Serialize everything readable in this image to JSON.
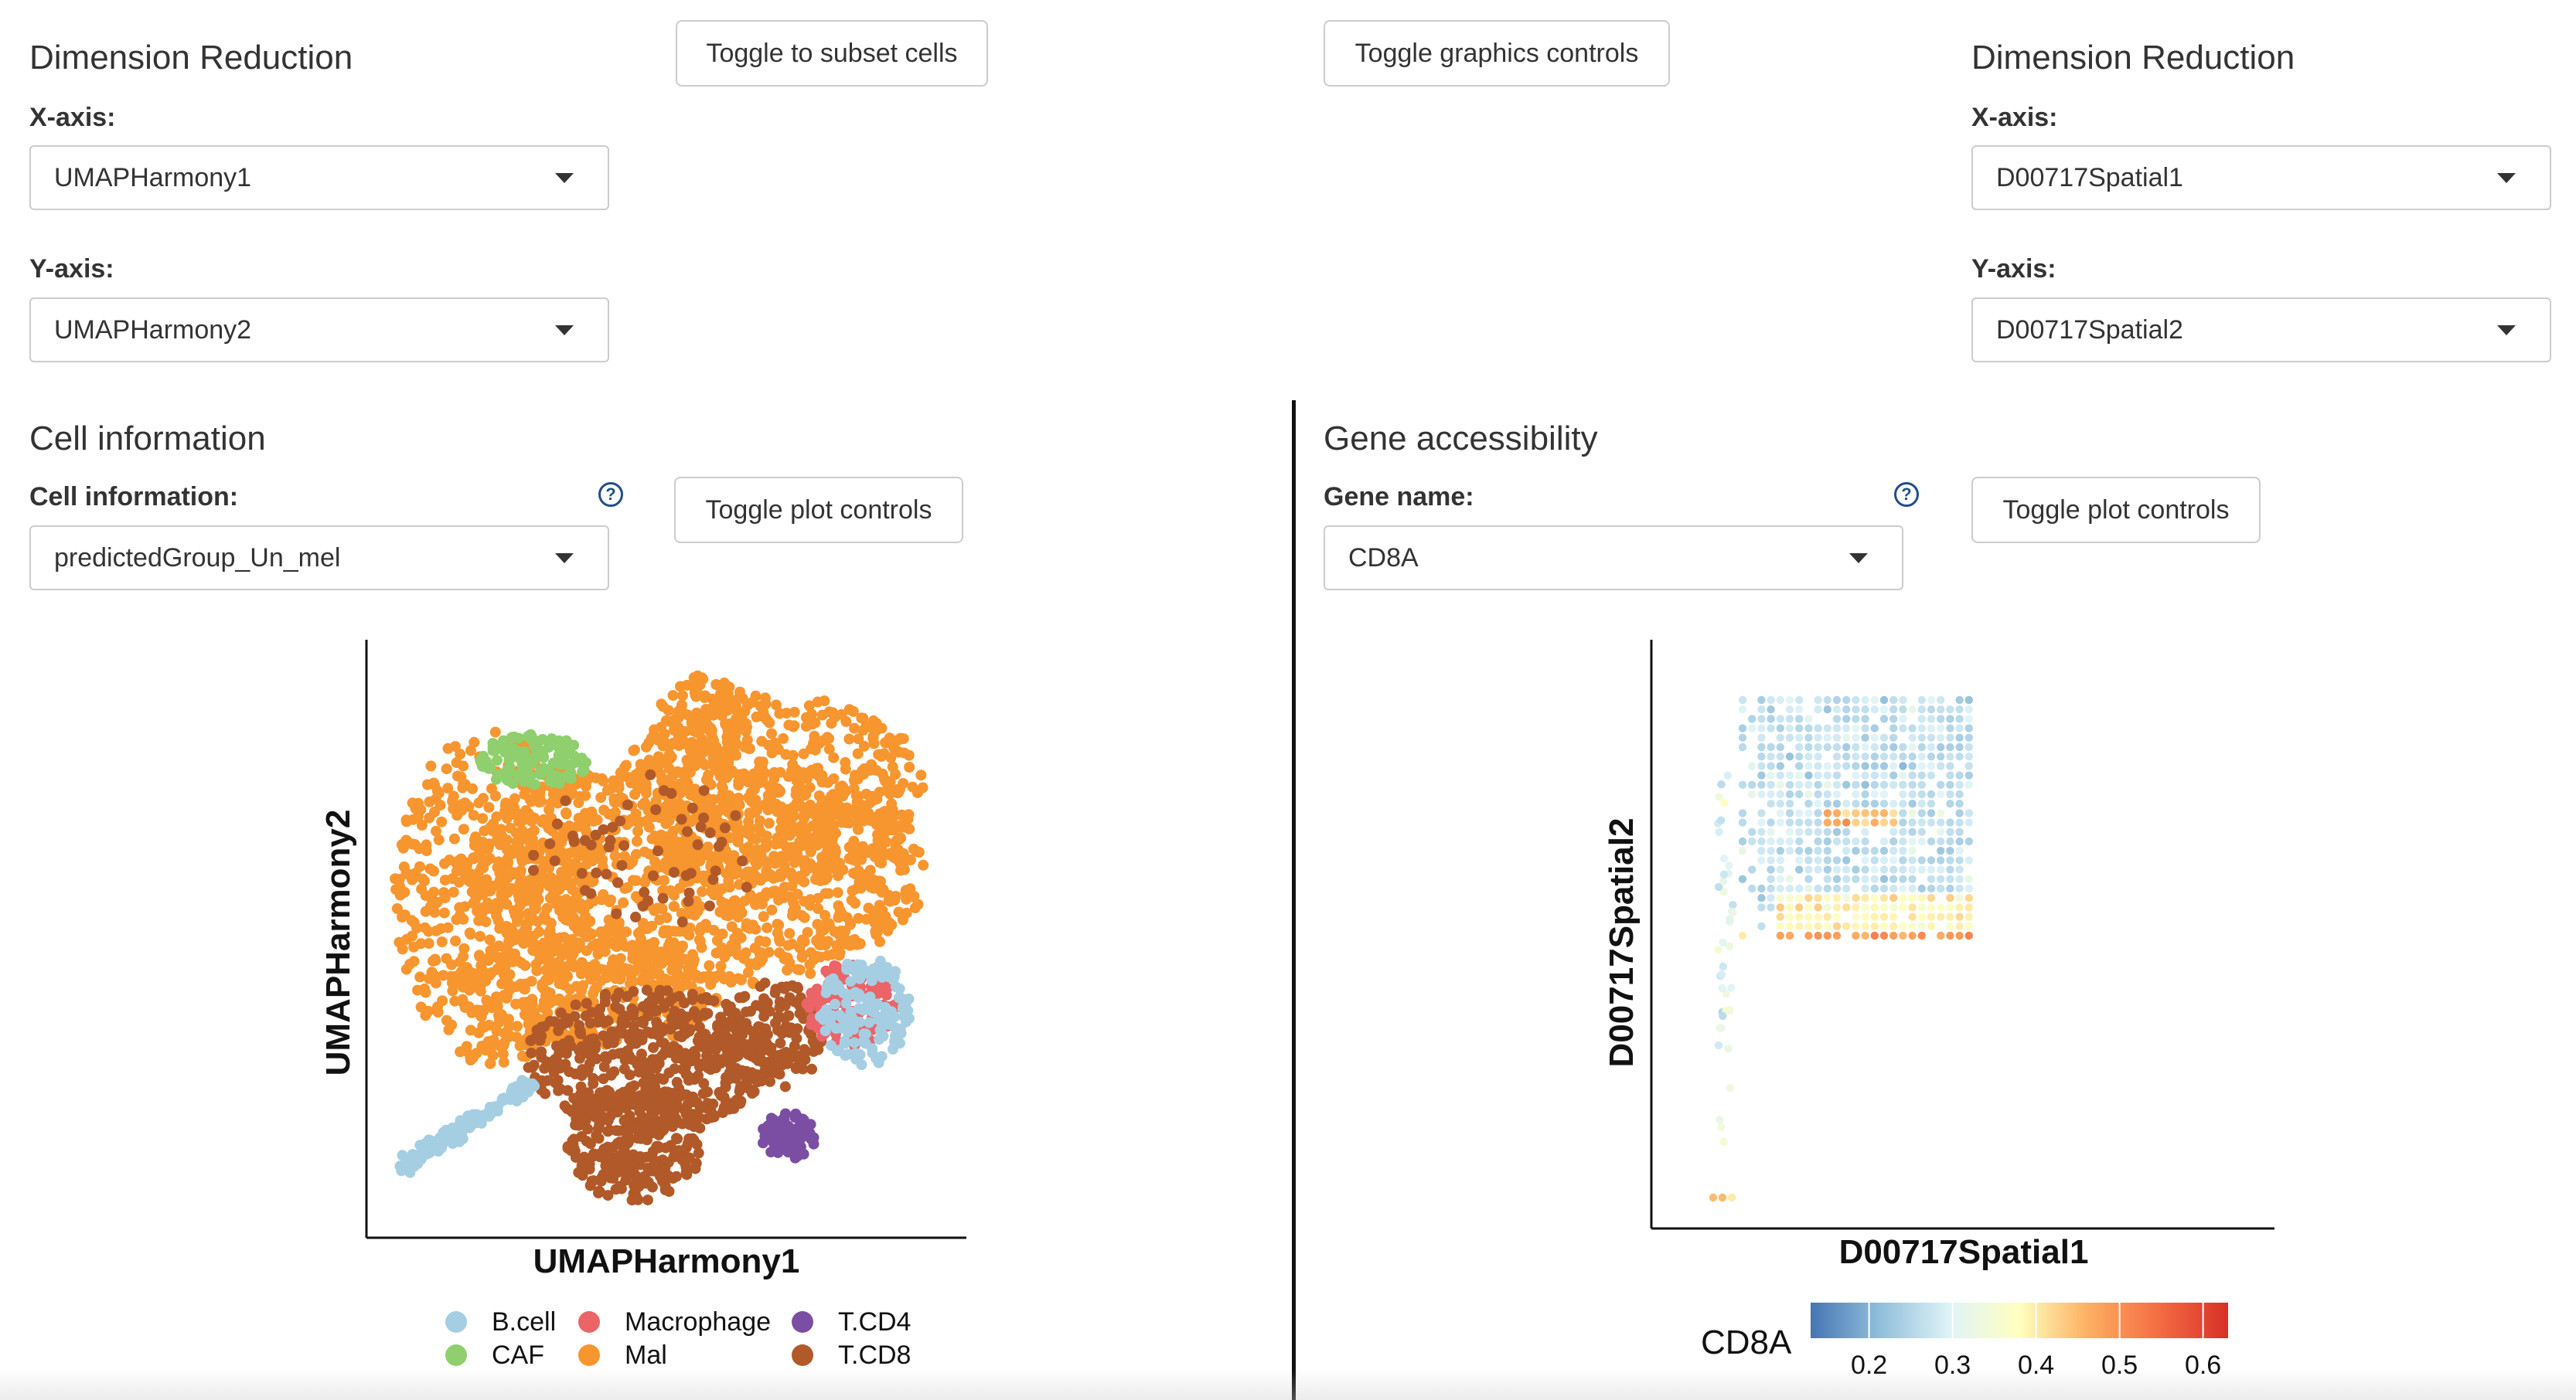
{
  "left_controls": {
    "dimred_title": "Dimension Reduction",
    "toggle_subset_label": "Toggle to subset cells",
    "x_axis_label": "X-axis:",
    "x_axis_value": "UMAPHarmony1",
    "y_axis_label": "Y-axis:",
    "y_axis_value": "UMAPHarmony2"
  },
  "right_controls": {
    "toggle_graphics_label": "Toggle graphics controls",
    "dimred_title": "Dimension Reduction",
    "x_axis_label": "X-axis:",
    "x_axis_value": "D00717Spatial1",
    "y_axis_label": "Y-axis:",
    "y_axis_value": "D00717Spatial2"
  },
  "cell_panel": {
    "title": "Cell information",
    "field_label": "Cell information:",
    "help_icon": "question-circle-icon",
    "field_value": "predictedGroup_Un_mel",
    "toggle_plot_label": "Toggle plot controls"
  },
  "gene_panel": {
    "title": "Gene accessibility",
    "field_label": "Gene name:",
    "help_icon": "question-circle-icon",
    "field_value": "CD8A",
    "toggle_plot_label": "Toggle plot controls"
  },
  "chart_data": [
    {
      "type": "scatter",
      "xlabel": "UMAPHarmony1",
      "ylabel": "UMAPHarmony2",
      "legend_position": "bottom",
      "series": [
        {
          "name": "B.cell",
          "color": "#a6cee3"
        },
        {
          "name": "CAF",
          "color": "#8fcf6d"
        },
        {
          "name": "Macrophage",
          "color": "#ea6468"
        },
        {
          "name": "Mal",
          "color": "#f7952e"
        },
        {
          "name": "T.CD4",
          "color": "#7b4ea3"
        },
        {
          "name": "T.CD8",
          "color": "#b15928"
        }
      ]
    },
    {
      "type": "scatter",
      "xlabel": "D00717Spatial1",
      "ylabel": "D00717Spatial2",
      "colorbar_title": "CD8A",
      "colorbar_ticks": [
        "0.2",
        "0.3",
        "0.4",
        "0.5",
        "0.6"
      ],
      "colorbar_range": [
        0.13,
        0.63
      ],
      "colormap": [
        "#4575b4",
        "#91bfdb",
        "#e0f3f8",
        "#ffffbf",
        "#fdae61",
        "#f46d43",
        "#d73027"
      ]
    }
  ]
}
